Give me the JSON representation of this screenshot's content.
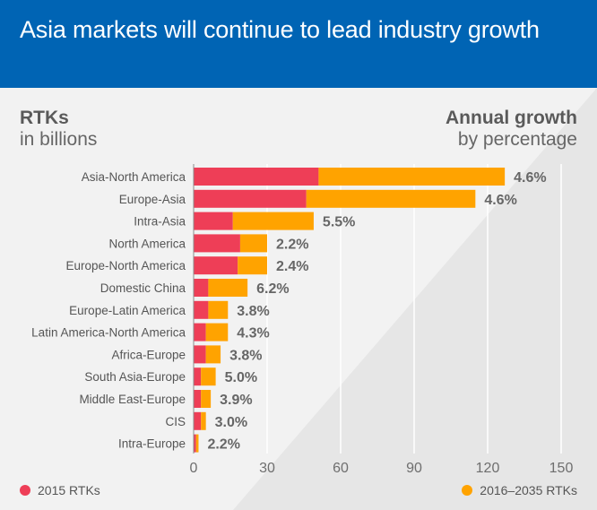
{
  "header": {
    "title": "Asia markets will continue to lead industry growth"
  },
  "units": {
    "left_bold": "RTKs",
    "left_sub": "in billions",
    "right_bold": "Annual growth",
    "right_sub": "by percentage"
  },
  "legend": {
    "series_2015": "2015 RTKs",
    "series_future": "2016–2035 RTKs"
  },
  "colors": {
    "header_bg": "#0064b4",
    "series_2015": "#ee3e57",
    "series_future": "#ffa300",
    "grid": "#ffffff",
    "label_text": "#555555",
    "growth_text": "#666666"
  },
  "chart_data": {
    "type": "bar",
    "orientation": "horizontal",
    "stacked": true,
    "categories": [
      "Asia-North America",
      "Europe-Asia",
      "Intra-Asia",
      "North America",
      "Europe-North America",
      "Domestic China",
      "Europe-Latin America",
      "Latin America-North America",
      "Africa-Europe",
      "South Asia-Europe",
      "Middle East-Europe",
      "CIS",
      "Intra-Europe"
    ],
    "series": [
      {
        "name": "2015 RTKs",
        "values": [
          51,
          46,
          16,
          19,
          18,
          6,
          6,
          5,
          5,
          3,
          3,
          3,
          1
        ]
      },
      {
        "name": "2016–2035 RTKs",
        "values": [
          76,
          69,
          33,
          11,
          12,
          16,
          8,
          9,
          6,
          6,
          4,
          2,
          1
        ]
      }
    ],
    "annotations": [
      "4.6%",
      "4.6%",
      "5.5%",
      "2.2%",
      "2.4%",
      "6.2%",
      "3.8%",
      "4.3%",
      "3.8%",
      "5.0%",
      "3.9%",
      "3.0%",
      "2.2%"
    ],
    "xlim": [
      0,
      150
    ],
    "xticks": [
      "0",
      "30",
      "60",
      "90",
      "120",
      "150"
    ],
    "xtick_values": [
      0,
      30,
      60,
      90,
      120,
      150
    ],
    "grid": true,
    "legend_position": "bottom"
  }
}
